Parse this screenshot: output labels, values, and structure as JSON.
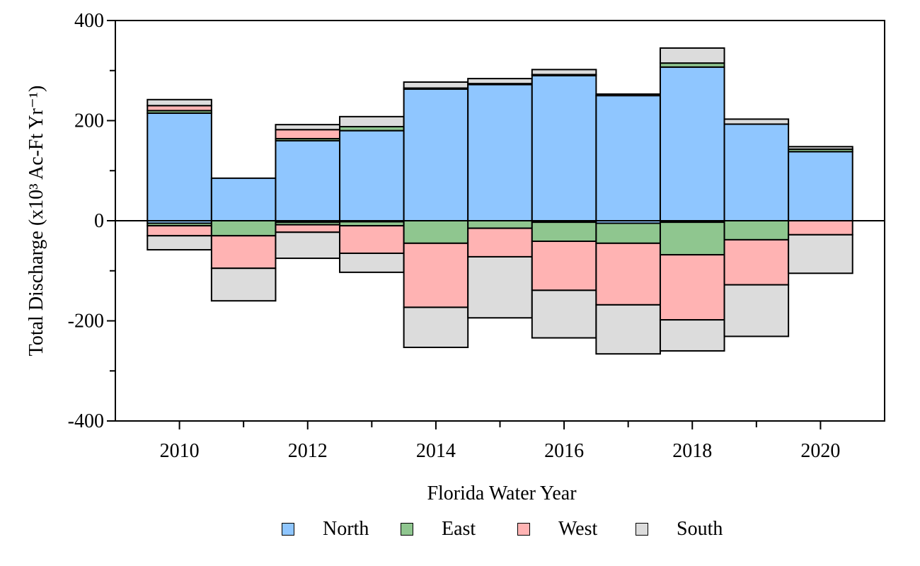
{
  "chart_data": {
    "type": "bar",
    "stacked": true,
    "title": "",
    "xlabel": "Florida Water Year",
    "ylabel": "Total Discharge (x10³ Ac-Ft Yr⁻¹)",
    "ylim": [
      -400,
      400
    ],
    "xlim": [
      2009,
      2021
    ],
    "yticks": [
      -400,
      -200,
      0,
      200,
      400
    ],
    "xticks": [
      2010,
      2012,
      2014,
      2016,
      2018,
      2020
    ],
    "grid": false,
    "legend_position": "bottom",
    "categories": [
      2010,
      2011,
      2012,
      2013,
      2014,
      2015,
      2016,
      2017,
      2018,
      2019,
      2020
    ],
    "series": [
      {
        "name": "North",
        "color": "#8fc6ff",
        "inflow": [
          215,
          85,
          160,
          180,
          263,
          272,
          290,
          250,
          307,
          193,
          138
        ],
        "outflow": [
          -5,
          0,
          -3,
          -2,
          0,
          0,
          -3,
          -5,
          -3,
          0,
          0
        ]
      },
      {
        "name": "East",
        "color": "#8fc68f",
        "inflow": [
          5,
          0,
          4,
          8,
          2,
          2,
          2,
          0,
          8,
          0,
          5
        ],
        "outflow": [
          -5,
          -30,
          -5,
          -8,
          -45,
          -15,
          -38,
          -40,
          -65,
          -38,
          0
        ]
      },
      {
        "name": "West",
        "color": "#ffb3b3",
        "inflow": [
          10,
          0,
          18,
          0,
          0,
          0,
          0,
          0,
          0,
          0,
          0
        ],
        "outflow": [
          -20,
          -65,
          -15,
          -55,
          -128,
          -57,
          -98,
          -123,
          -130,
          -90,
          -28
        ]
      },
      {
        "name": "South",
        "color": "#dcdcdc",
        "inflow": [
          12,
          0,
          10,
          20,
          12,
          10,
          10,
          3,
          30,
          10,
          5
        ],
        "outflow": [
          -28,
          -65,
          -52,
          -38,
          -80,
          -122,
          -95,
          -98,
          -62,
          -103,
          -77
        ]
      }
    ]
  }
}
